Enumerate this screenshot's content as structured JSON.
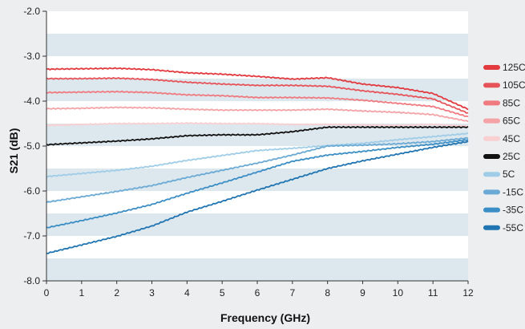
{
  "chart_data": {
    "type": "line",
    "xlabel": "Frequency (GHz)",
    "ylabel": "S21 (dB)",
    "xlim": [
      0,
      12
    ],
    "ylim": [
      -8.0,
      -2.0
    ],
    "x_ticks": [
      "0",
      "1",
      "2",
      "3",
      "4",
      "5",
      "6",
      "7",
      "8",
      "9",
      "10",
      "11",
      "12"
    ],
    "y_ticks": [
      "-2.0",
      "-3.0",
      "-4.0",
      "-5.0",
      "-6.0",
      "-7.0",
      "-8.0"
    ],
    "grid": "alternating horizontal bands",
    "legend_position": "right",
    "x": [
      0,
      1,
      2,
      3,
      4,
      5,
      6,
      7,
      8,
      9,
      10,
      11,
      12
    ],
    "series": [
      {
        "name": "125C",
        "color": "#e23a3e",
        "values": [
          -3.29,
          -3.28,
          -3.27,
          -3.3,
          -3.37,
          -3.4,
          -3.45,
          -3.51,
          -3.48,
          -3.62,
          -3.7,
          -3.83,
          -4.18
        ]
      },
      {
        "name": "105C",
        "color": "#e6545a",
        "values": [
          -3.5,
          -3.5,
          -3.49,
          -3.52,
          -3.58,
          -3.62,
          -3.65,
          -3.65,
          -3.67,
          -3.77,
          -3.85,
          -3.95,
          -4.27
        ]
      },
      {
        "name": "85C",
        "color": "#ef7a7f",
        "values": [
          -3.81,
          -3.8,
          -3.79,
          -3.81,
          -3.86,
          -3.88,
          -3.92,
          -3.92,
          -3.93,
          -3.98,
          -4.05,
          -4.12,
          -4.35
        ]
      },
      {
        "name": "65C",
        "color": "#f4a3a6",
        "values": [
          -4.17,
          -4.16,
          -4.14,
          -4.15,
          -4.18,
          -4.2,
          -4.2,
          -4.2,
          -4.18,
          -4.22,
          -4.25,
          -4.3,
          -4.45
        ]
      },
      {
        "name": "45C",
        "color": "#f9d0d2",
        "values": [
          -4.54,
          -4.52,
          -4.5,
          -4.5,
          -4.49,
          -4.5,
          -4.5,
          -4.52,
          -4.52,
          -4.53,
          -4.54,
          -4.52,
          -4.56
        ]
      },
      {
        "name": "25C",
        "color": "#111111",
        "values": [
          -4.97,
          -4.93,
          -4.89,
          -4.84,
          -4.77,
          -4.75,
          -4.75,
          -4.68,
          -4.58,
          -4.58,
          -4.58,
          -4.58,
          -4.58
        ]
      },
      {
        "name": "5C",
        "color": "#9fcde8",
        "values": [
          -5.68,
          -5.61,
          -5.54,
          -5.45,
          -5.32,
          -5.21,
          -5.1,
          -5.05,
          -4.99,
          -4.94,
          -4.86,
          -4.79,
          -4.72
        ]
      },
      {
        "name": "-15C",
        "color": "#6aaad5",
        "values": [
          -6.25,
          -6.13,
          -6.01,
          -5.88,
          -5.7,
          -5.54,
          -5.38,
          -5.2,
          -5.0,
          -4.98,
          -4.95,
          -4.9,
          -4.82
        ]
      },
      {
        "name": "-35C",
        "color": "#3b8ec5",
        "values": [
          -6.82,
          -6.66,
          -6.49,
          -6.3,
          -6.05,
          -5.82,
          -5.58,
          -5.34,
          -5.2,
          -5.12,
          -5.03,
          -4.96,
          -4.86
        ]
      },
      {
        "name": "-55C",
        "color": "#1f74b1",
        "values": [
          -7.39,
          -7.2,
          -7.01,
          -6.78,
          -6.47,
          -6.23,
          -5.98,
          -5.74,
          -5.5,
          -5.33,
          -5.18,
          -5.03,
          -4.9
        ]
      }
    ]
  }
}
